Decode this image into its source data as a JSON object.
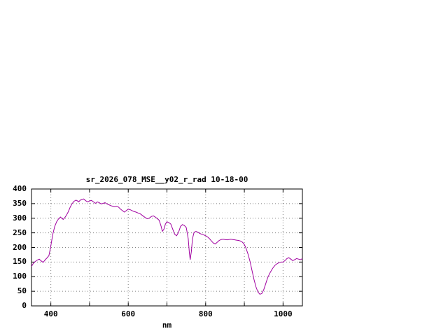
{
  "page": {
    "background_color": "#ffffff"
  },
  "chart_data": {
    "type": "line",
    "title": "sr_2026_078_MSE__y02_r_rad 10-18-00",
    "xlabel": "nm",
    "ylabel": "",
    "xlim": [
      350,
      1050
    ],
    "ylim": [
      0,
      400
    ],
    "grid": true,
    "legend": "none",
    "line_color": "#a000a0",
    "grid_color": "#808080",
    "border_color": "#000000",
    "x_ticks": [
      {
        "value": 400,
        "label": "400"
      },
      {
        "value": 500,
        "label": ""
      },
      {
        "value": 600,
        "label": "600"
      },
      {
        "value": 700,
        "label": ""
      },
      {
        "value": 800,
        "label": "800"
      },
      {
        "value": 900,
        "label": ""
      },
      {
        "value": 1000,
        "label": "1000"
      }
    ],
    "y_ticks": [
      {
        "value": 0,
        "label": "0"
      },
      {
        "value": 50,
        "label": "50"
      },
      {
        "value": 100,
        "label": "100"
      },
      {
        "value": 150,
        "label": "150"
      },
      {
        "value": 200,
        "label": "200"
      },
      {
        "value": 250,
        "label": "250"
      },
      {
        "value": 300,
        "label": "300"
      },
      {
        "value": 350,
        "label": "350"
      },
      {
        "value": 400,
        "label": "400"
      }
    ],
    "series": [
      {
        "name": "sr_2026_078_MSE__y02_r_rad",
        "points": [
          [
            350,
            135
          ],
          [
            355,
            146
          ],
          [
            360,
            152
          ],
          [
            365,
            157
          ],
          [
            370,
            160
          ],
          [
            375,
            154
          ],
          [
            380,
            149
          ],
          [
            385,
            157
          ],
          [
            390,
            164
          ],
          [
            395,
            172
          ],
          [
            400,
            205
          ],
          [
            405,
            245
          ],
          [
            410,
            272
          ],
          [
            415,
            288
          ],
          [
            420,
            298
          ],
          [
            425,
            304
          ],
          [
            428,
            300
          ],
          [
            432,
            296
          ],
          [
            436,
            302
          ],
          [
            440,
            310
          ],
          [
            445,
            322
          ],
          [
            450,
            338
          ],
          [
            455,
            350
          ],
          [
            460,
            358
          ],
          [
            465,
            362
          ],
          [
            468,
            360
          ],
          [
            472,
            356
          ],
          [
            476,
            362
          ],
          [
            480,
            364
          ],
          [
            485,
            366
          ],
          [
            490,
            360
          ],
          [
            495,
            356
          ],
          [
            500,
            359
          ],
          [
            505,
            361
          ],
          [
            510,
            356
          ],
          [
            515,
            351
          ],
          [
            520,
            356
          ],
          [
            525,
            353
          ],
          [
            530,
            349
          ],
          [
            535,
            351
          ],
          [
            540,
            353
          ],
          [
            545,
            349
          ],
          [
            550,
            346
          ],
          [
            555,
            343
          ],
          [
            560,
            341
          ],
          [
            565,
            339
          ],
          [
            570,
            341
          ],
          [
            575,
            338
          ],
          [
            580,
            331
          ],
          [
            585,
            326
          ],
          [
            590,
            321
          ],
          [
            595,
            326
          ],
          [
            600,
            331
          ],
          [
            605,
            329
          ],
          [
            610,
            326
          ],
          [
            615,
            323
          ],
          [
            620,
            321
          ],
          [
            625,
            318
          ],
          [
            630,
            316
          ],
          [
            635,
            311
          ],
          [
            640,
            306
          ],
          [
            645,
            301
          ],
          [
            650,
            298
          ],
          [
            655,
            301
          ],
          [
            660,
            306
          ],
          [
            665,
            308
          ],
          [
            670,
            304
          ],
          [
            675,
            299
          ],
          [
            680,
            293
          ],
          [
            685,
            272
          ],
          [
            688,
            255
          ],
          [
            692,
            262
          ],
          [
            696,
            280
          ],
          [
            700,
            288
          ],
          [
            705,
            285
          ],
          [
            710,
            280
          ],
          [
            715,
            262
          ],
          [
            720,
            245
          ],
          [
            725,
            240
          ],
          [
            730,
            252
          ],
          [
            735,
            272
          ],
          [
            740,
            278
          ],
          [
            745,
            275
          ],
          [
            750,
            268
          ],
          [
            755,
            230
          ],
          [
            758,
            180
          ],
          [
            760,
            158
          ],
          [
            763,
            185
          ],
          [
            766,
            230
          ],
          [
            770,
            252
          ],
          [
            775,
            255
          ],
          [
            780,
            252
          ],
          [
            785,
            248
          ],
          [
            790,
            245
          ],
          [
            795,
            243
          ],
          [
            800,
            240
          ],
          [
            805,
            236
          ],
          [
            810,
            230
          ],
          [
            815,
            222
          ],
          [
            820,
            215
          ],
          [
            825,
            212
          ],
          [
            830,
            218
          ],
          [
            835,
            224
          ],
          [
            840,
            227
          ],
          [
            845,
            228
          ],
          [
            850,
            227
          ],
          [
            855,
            226
          ],
          [
            860,
            227
          ],
          [
            865,
            228
          ],
          [
            870,
            227
          ],
          [
            875,
            226
          ],
          [
            880,
            225
          ],
          [
            885,
            224
          ],
          [
            890,
            222
          ],
          [
            895,
            218
          ],
          [
            900,
            210
          ],
          [
            905,
            195
          ],
          [
            910,
            175
          ],
          [
            915,
            150
          ],
          [
            920,
            120
          ],
          [
            925,
            90
          ],
          [
            930,
            65
          ],
          [
            935,
            48
          ],
          [
            940,
            40
          ],
          [
            945,
            42
          ],
          [
            950,
            55
          ],
          [
            955,
            75
          ],
          [
            960,
            95
          ],
          [
            965,
            110
          ],
          [
            970,
            122
          ],
          [
            975,
            132
          ],
          [
            980,
            140
          ],
          [
            985,
            145
          ],
          [
            990,
            148
          ],
          [
            995,
            150
          ],
          [
            1000,
            150
          ],
          [
            1005,
            155
          ],
          [
            1010,
            162
          ],
          [
            1015,
            165
          ],
          [
            1020,
            160
          ],
          [
            1025,
            155
          ],
          [
            1030,
            158
          ],
          [
            1035,
            162
          ],
          [
            1040,
            160
          ],
          [
            1045,
            158
          ],
          [
            1050,
            162
          ]
        ]
      }
    ]
  }
}
